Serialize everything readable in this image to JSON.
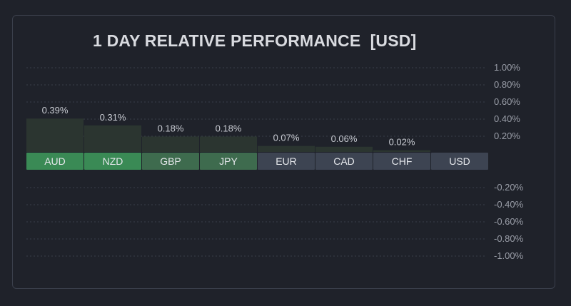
{
  "chart_data": {
    "type": "bar",
    "title": "1 DAY RELATIVE PERFORMANCE  [USD]",
    "categories": [
      "AUD",
      "NZD",
      "GBP",
      "JPY",
      "EUR",
      "CAD",
      "CHF",
      "USD"
    ],
    "values": [
      0.39,
      0.31,
      0.18,
      0.18,
      0.07,
      0.06,
      0.02,
      null
    ],
    "value_labels": [
      "0.39%",
      "0.31%",
      "0.18%",
      "0.18%",
      "0.07%",
      "0.06%",
      "0.02%",
      ""
    ],
    "y_ticks_positive": [
      "1.00%",
      "0.80%",
      "0.60%",
      "0.40%",
      "0.20%"
    ],
    "y_ticks_negative": [
      "-0.20%",
      "-0.40%",
      "-0.60%",
      "-0.80%",
      "-1.00%"
    ],
    "ylim": [
      -1.0,
      1.0
    ],
    "grid": true,
    "colors": {
      "strong_positive_label": "#3a8a55",
      "positive_label": "#3e6b4e",
      "neutral_label": "#3d4452",
      "bar_fill": "#2b3530",
      "grid": "#3a3f4b",
      "text": "#c8cbd2",
      "tick_text": "#9a9ea8"
    },
    "label_styles": [
      "strong_positive_label",
      "strong_positive_label",
      "positive_label",
      "positive_label",
      "neutral_label",
      "neutral_label",
      "neutral_label",
      "neutral_label"
    ]
  }
}
